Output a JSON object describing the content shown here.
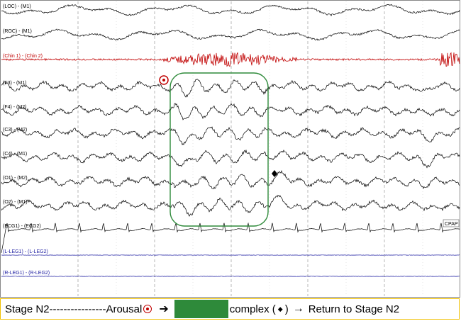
{
  "channels": [
    {
      "label": "(LOC) - (M1)",
      "color": "#000000",
      "type": "eog"
    },
    {
      "label": "(ROC) - (M1)",
      "color": "#000000",
      "type": "eog"
    },
    {
      "label": "(Chin 1) - (Chin 2)",
      "color": "#c00000",
      "type": "emg"
    },
    {
      "label": "(F3) - (M1)",
      "color": "#000000",
      "type": "eeg"
    },
    {
      "label": "(F4) - (M2)",
      "color": "#000000",
      "type": "eeg"
    },
    {
      "label": "(C3) - (M2)",
      "color": "#000000",
      "type": "eeg"
    },
    {
      "label": "(C4) - (M1)",
      "color": "#000000",
      "type": "eeg"
    },
    {
      "label": "(O1) - (M2)",
      "color": "#000000",
      "type": "eeg"
    },
    {
      "label": "(O2) - (M1)",
      "color": "#000000",
      "type": "eeg"
    },
    {
      "label": "(ECG1) - (ECG2)",
      "color": "#000000",
      "type": "ecg"
    },
    {
      "label": "(L-LEG1) - (L-LEG2)",
      "color": "#1a1aa0",
      "type": "flat"
    },
    {
      "label": "(R-LEG1) - (R-LEG2)",
      "color": "#1a1aa0",
      "type": "flat"
    }
  ],
  "cpap_label": "CPAP",
  "colors": {
    "arousal_marker": "#c00000",
    "box_outline": "#2e8a3a",
    "caption_border": "#f0c000",
    "leg_trace": "#1a1aa0"
  },
  "icons": {
    "arousal": "circled-dot-icon",
    "kcomplex": "diamond-icon",
    "arrow": "right-arrow-icon"
  },
  "caption": {
    "stage_text": "Stage N2----------------Arousal",
    "arrow_glyph": "➔",
    "complex_open": "complex (",
    "diamond_glyph": "◆",
    "complex_close": ")",
    "return_arrow": "→",
    "return_text": "Return to Stage N2"
  }
}
